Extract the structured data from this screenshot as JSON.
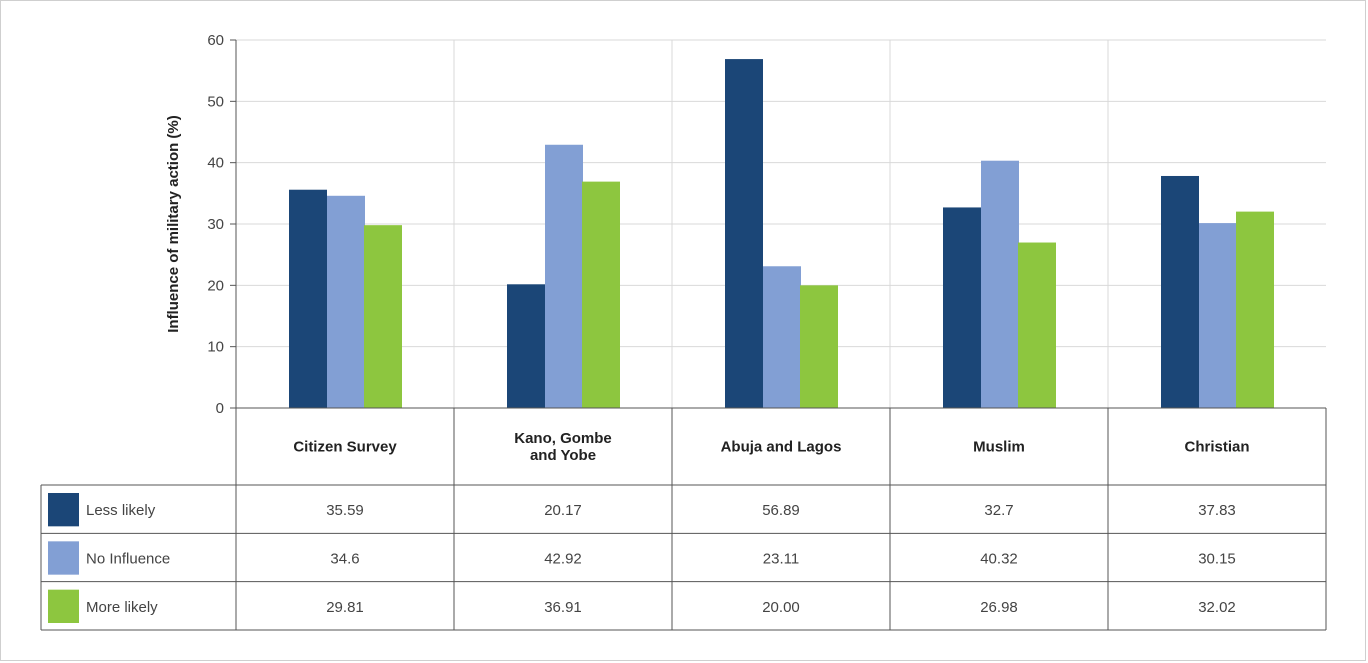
{
  "chart_data": {
    "type": "bar",
    "title": "",
    "xlabel": "",
    "ylabel": "Influence of military action (%)",
    "ylim": [
      0,
      60
    ],
    "yticks": [
      0,
      10,
      20,
      30,
      40,
      50,
      60
    ],
    "grid": true,
    "legend": "table-left",
    "categories": [
      [
        "Citizen Survey"
      ],
      [
        "Kano, Gombe",
        "and Yobe"
      ],
      [
        "Abuja and Lagos"
      ],
      [
        "Muslim"
      ],
      [
        "Christian"
      ]
    ],
    "series": [
      {
        "name": "Less likely",
        "color": "#1b4677",
        "values": [
          35.59,
          20.17,
          56.89,
          32.7,
          37.83
        ],
        "labels": [
          "35.59",
          "20.17",
          "56.89",
          "32.7",
          "37.83"
        ]
      },
      {
        "name": "No Influence",
        "color": "#829fd4",
        "values": [
          34.6,
          42.92,
          23.11,
          40.32,
          30.15
        ],
        "labels": [
          "34.6",
          "42.92",
          "23.11",
          "40.32",
          "30.15"
        ]
      },
      {
        "name": "More likely",
        "color": "#8dc63f",
        "values": [
          29.81,
          36.91,
          20.0,
          26.98,
          32.02
        ],
        "labels": [
          "29.81",
          "36.91",
          "20.00",
          "26.98",
          "32.02"
        ]
      }
    ]
  }
}
